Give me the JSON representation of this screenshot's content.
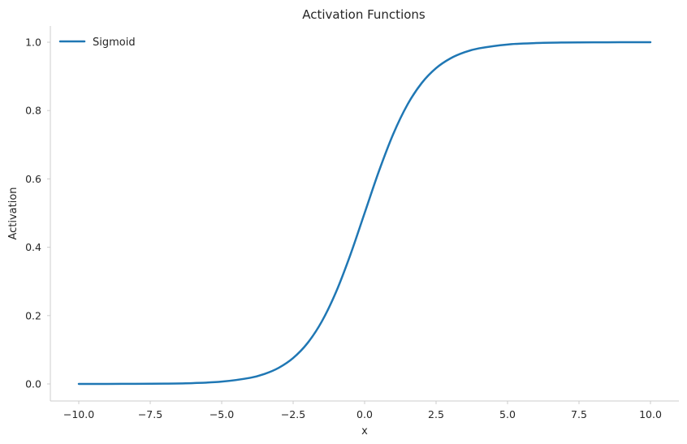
{
  "chart_data": {
    "type": "line",
    "title": "Activation Functions",
    "xlabel": "x",
    "ylabel": "Activation",
    "xlim": [
      -10,
      10
    ],
    "ylim": [
      0,
      1
    ],
    "x_ticks": [
      -10.0,
      -7.5,
      -5.0,
      -2.5,
      0.0,
      2.5,
      5.0,
      7.5,
      10.0
    ],
    "x_tick_labels": [
      "−10.0",
      "−7.5",
      "−5.0",
      "−2.5",
      "0.0",
      "2.5",
      "5.0",
      "7.5",
      "10.0"
    ],
    "y_ticks": [
      0.0,
      0.2,
      0.4,
      0.6,
      0.8,
      1.0
    ],
    "y_tick_labels": [
      "0.0",
      "0.2",
      "0.4",
      "0.6",
      "0.8",
      "1.0"
    ],
    "grid": false,
    "legend_position": "top-left",
    "series": [
      {
        "name": "Sigmoid",
        "color": "#1f77b4",
        "x": [
          -10,
          -9,
          -8,
          -7,
          -6,
          -5,
          -4,
          -3.5,
          -3,
          -2.5,
          -2,
          -1.5,
          -1,
          -0.5,
          0,
          0.5,
          1,
          1.5,
          2,
          2.5,
          3,
          3.5,
          4,
          5,
          6,
          7,
          8,
          9,
          10
        ],
        "y": [
          4.54e-05,
          0.0001234,
          0.0003354,
          0.000911,
          0.002473,
          0.006693,
          0.017986,
          0.029312,
          0.047426,
          0.075858,
          0.119203,
          0.182426,
          0.268941,
          0.377541,
          0.5,
          0.622459,
          0.731059,
          0.817574,
          0.880797,
          0.924142,
          0.952574,
          0.970688,
          0.982014,
          0.993307,
          0.997527,
          0.999089,
          0.999665,
          0.999877,
          0.999955
        ]
      }
    ]
  }
}
